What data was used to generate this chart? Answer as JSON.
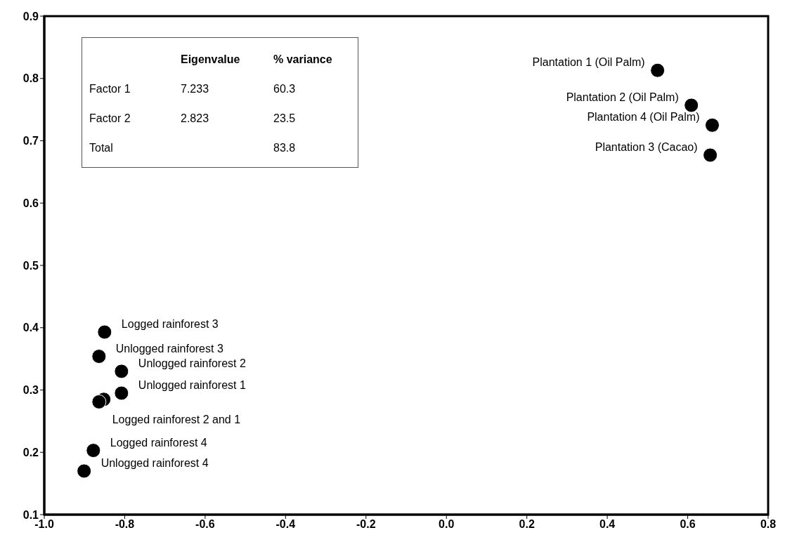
{
  "chart_data": {
    "type": "scatter",
    "x": [
      0.525,
      0.609,
      0.661,
      0.656,
      -0.85,
      -0.864,
      -0.808,
      -0.808,
      -0.852,
      -0.864,
      -0.878,
      -0.901
    ],
    "values": [
      0.813,
      0.757,
      0.725,
      0.677,
      0.393,
      0.354,
      0.33,
      0.295,
      0.285,
      0.281,
      0.203,
      0.17
    ],
    "color": "#000000",
    "marker": "circle",
    "xlim": [
      -1.0,
      0.8
    ],
    "xticks": [
      {
        "value": -1.0,
        "label": "-1.0"
      },
      -0.8,
      -0.6,
      -0.4,
      -0.2,
      {
        "value": 0,
        "label": "0.0"
      },
      0.2,
      0.4,
      0.6,
      0.8
    ],
    "ylim": [
      0.1,
      0.9
    ],
    "yticks": [
      0.1,
      0.2,
      0.3,
      0.4,
      0.5,
      0.6,
      0.7,
      0.8,
      0.9
    ],
    "annotations": [
      "\tEigenvalue\t% variance",
      "Factor 1\t7.233\t60.3",
      "Factor 2\t2.823\t23.5",
      "Total\t\t83.8",
      {
        "text": "Plantation 1 (Oil Palm)",
        "x": 0.525,
        "y": 0.813
      },
      {
        "text": "Plantation 2 (Oil Palm)",
        "x": 0.609,
        "y": 0.757
      },
      {
        "text": "Plantation 4 (Oil Palm)",
        "x": 0.661,
        "y": 0.725
      },
      {
        "text": "Plantation 3 (Cacao)",
        "x": 0.656,
        "y": 0.677
      },
      {
        "text": "Logged rainforest 3",
        "x": -0.85,
        "y": 0.393
      },
      {
        "text": "Unlogged rainforest 3",
        "x": -0.864,
        "y": 0.354
      },
      {
        "text": "Unlogged rainforest 2",
        "x": -0.808,
        "y": 0.33
      },
      {
        "text": "Unlogged rainforest 1",
        "x": -0.808,
        "y": 0.295
      },
      {
        "text": "Logged rainforest 2 and 1",
        "x": -0.852,
        "y": 0.285
      },
      {
        "text": "Logged rainforest 4",
        "x": -0.878,
        "y": 0.203
      },
      {
        "text": "Unlogged rainforest 4",
        "x": -0.901,
        "y": 0.17
      }
    ]
  }
}
